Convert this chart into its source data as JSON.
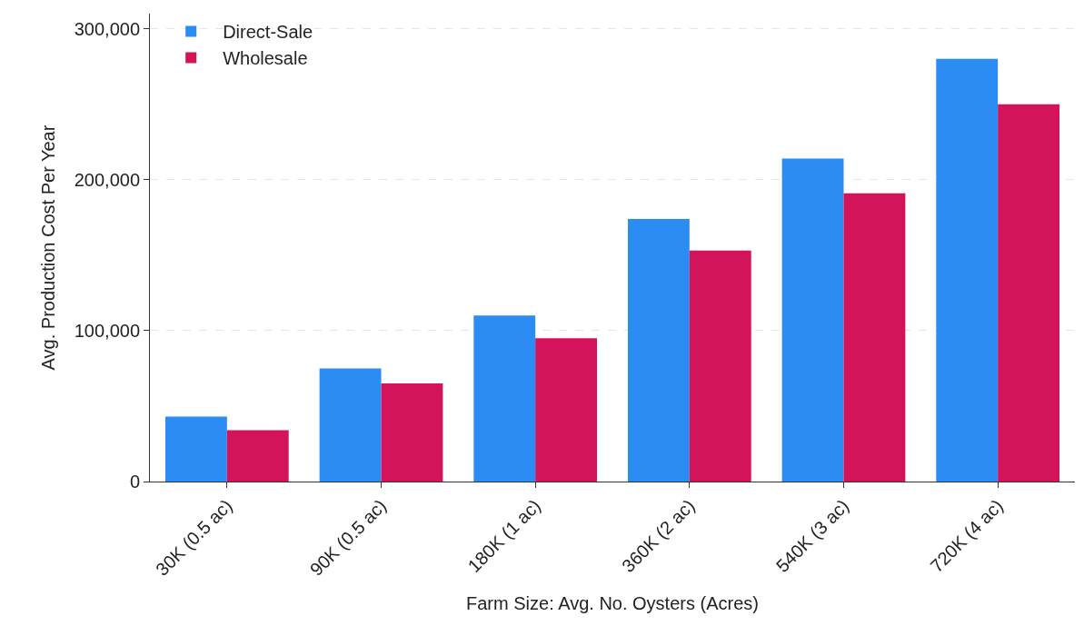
{
  "chart_data": {
    "type": "bar",
    "xlabel": "Farm Size: Avg. No. Oysters (Acres)",
    "ylabel": "Avg. Production Cost Per Year",
    "categories": [
      "30K (0.5 ac)",
      "90K (0.5 ac)",
      "180K (1 ac)",
      "360K (2 ac)",
      "540K (3 ac)",
      "720K (4 ac)"
    ],
    "series": [
      {
        "name": "Direct-Sale",
        "color": "#2b8cf3",
        "values": [
          43000,
          75000,
          110000,
          174000,
          214000,
          280000
        ]
      },
      {
        "name": "Wholesale",
        "color": "#d3135a",
        "values": [
          34000,
          65000,
          95000,
          153000,
          191000,
          250000
        ]
      }
    ],
    "ylim": [
      0,
      310000
    ],
    "yticks": [
      {
        "value": 0,
        "label": "0"
      },
      {
        "value": 100000,
        "label": "100,000"
      },
      {
        "value": 200000,
        "label": "200,000"
      },
      {
        "value": 300000,
        "label": "300,000"
      }
    ],
    "grid": "y",
    "legend": "top left"
  }
}
